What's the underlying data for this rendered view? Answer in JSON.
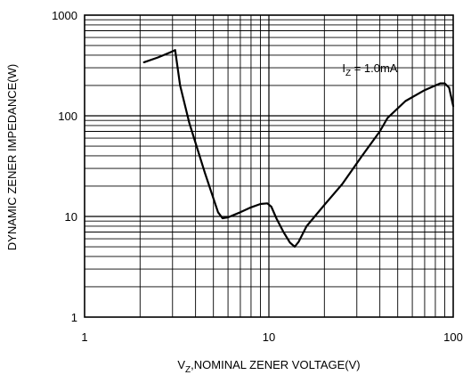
{
  "chart_data": {
    "type": "line",
    "x_scale": "log",
    "y_scale": "log",
    "xlim": [
      1,
      100
    ],
    "ylim": [
      1,
      1000
    ],
    "grid": true,
    "x_ticks": [
      "1",
      "10",
      "100"
    ],
    "y_ticks": [
      "1000",
      "100",
      "10",
      "1"
    ],
    "xlabel": {
      "main": "V",
      "sub": "Z",
      "rest": ",NOMINAL ZENER VOLTAGE(V)"
    },
    "ylabel": "DYNAMIC ZENER IMPEDANCE(W)",
    "annotation": {
      "main": "I",
      "sub": "Z",
      "rest": " = 1.0mA",
      "at": [
        25,
        300
      ]
    },
    "series": [
      {
        "x": [
          2.1,
          2.5,
          2.9,
          3.1,
          3.3,
          3.7,
          4.5,
          5.3,
          5.6,
          6.0,
          7.0,
          8.0,
          9.0,
          9.8,
          10.3,
          11.0,
          12.0,
          13.0,
          13.8,
          14.5,
          16,
          20,
          25,
          32,
          40,
          44,
          55,
          70,
          85,
          90,
          95,
          100
        ],
        "y": [
          340,
          380,
          425,
          450,
          200,
          85,
          27,
          11,
          9.6,
          9.8,
          11.0,
          12.3,
          13.3,
          13.5,
          12.5,
          9.5,
          7.0,
          5.5,
          5.0,
          5.6,
          8,
          13,
          21,
          40,
          70,
          95,
          140,
          180,
          210,
          210,
          190,
          125
        ]
      }
    ],
    "line_color": "#000000"
  }
}
